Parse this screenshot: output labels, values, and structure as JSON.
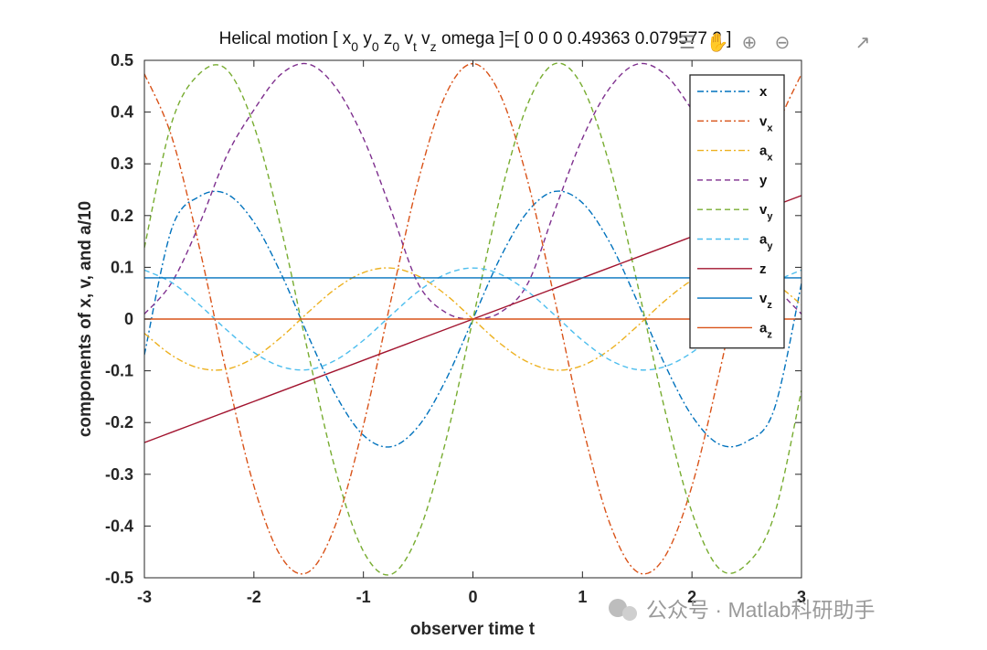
{
  "title": {
    "prefix": "Helical motion  [ x",
    "parts": [
      {
        "t": "0",
        "sub": true
      },
      {
        "t": " y",
        "sub": false
      },
      {
        "t": "0",
        "sub": true
      },
      {
        "t": " z",
        "sub": false
      },
      {
        "t": "0",
        "sub": true
      },
      {
        "t": " v",
        "sub": false
      },
      {
        "t": "t",
        "sub": true
      },
      {
        "t": " v",
        "sub": false
      },
      {
        "t": "z",
        "sub": true
      },
      {
        "t": " omega ]=[ 0 0 0 0.49363 0.079577 2 ]",
        "sub": false
      }
    ]
  },
  "toolbar": [
    {
      "name": "legend-toggle-icon",
      "glyph": "☰"
    },
    {
      "name": "pan-hand-icon",
      "glyph": "✋"
    },
    {
      "name": "zoom-in-icon",
      "glyph": "⊕"
    },
    {
      "name": "zoom-out-icon",
      "glyph": "⊖"
    },
    {
      "name": "restore-view-icon",
      "glyph": "↗"
    }
  ],
  "watermark": "公众号 · Matlab科研助手",
  "chart_data": {
    "type": "line",
    "xlabel": "observer time t",
    "ylabel": "components of  x,  v, and  a/10",
    "xlim": [
      -3,
      3
    ],
    "ylim": [
      -0.5,
      0.5
    ],
    "xticks": [
      "-3",
      "-2",
      "-1",
      "0",
      "1",
      "2",
      "3"
    ],
    "yticks": [
      "-0.5",
      "-0.4",
      "-0.3",
      "-0.2",
      "-0.1",
      "0",
      "0.1",
      "0.2",
      "0.3",
      "0.4",
      "0.5"
    ],
    "grid": false,
    "legend_position": "top-right",
    "x": [
      -3.0,
      -2.75,
      -2.5,
      -2.25,
      -2.0,
      -1.75,
      -1.5,
      -1.25,
      -1.0,
      -0.75,
      -0.5,
      -0.25,
      0.0,
      0.25,
      0.5,
      0.75,
      1.0,
      1.25,
      1.5,
      1.75,
      2.0,
      2.25,
      2.5,
      2.75,
      3.0
    ],
    "series": [
      {
        "name": "x",
        "label": "x",
        "sub": "",
        "color": "#0072BD",
        "dash": "7 3 2 3",
        "values": [
          -0.0691,
          0.1749,
          0.2367,
          0.242,
          0.1871,
          0.0869,
          -0.0346,
          -0.1478,
          -0.2245,
          -0.2468,
          -0.2077,
          -0.1187,
          0.0,
          0.1187,
          0.2077,
          0.2468,
          0.2245,
          0.1478,
          0.0346,
          -0.0869,
          -0.1871,
          -0.242,
          -0.2367,
          -0.1749,
          0.0691
        ]
      },
      {
        "name": "vx",
        "label": "v",
        "sub": "x",
        "color": "#D95319",
        "dash": "7 3 2 3",
        "values": [
          0.474,
          0.352,
          0.1401,
          -0.104,
          -0.3226,
          -0.4599,
          -0.4886,
          -0.3951,
          -0.2054,
          0.0349,
          0.2667,
          0.4332,
          0.4936,
          0.4332,
          0.2667,
          0.0349,
          -0.2054,
          -0.3951,
          -0.4886,
          -0.4599,
          -0.3226,
          -0.104,
          0.1401,
          0.352,
          0.474
        ]
      },
      {
        "name": "ax",
        "label": "a",
        "sub": "x",
        "color": "#EDB120",
        "dash": "7 3 2 3",
        "values": [
          -0.0276,
          -0.07,
          -0.0947,
          -0.0968,
          -0.0748,
          -0.0348,
          0.0139,
          0.0591,
          0.0898,
          0.0987,
          0.0831,
          0.0475,
          0.0,
          -0.0475,
          -0.0831,
          -0.0987,
          -0.0898,
          -0.0591,
          -0.0139,
          0.0348,
          0.0748,
          0.0968,
          0.0947,
          0.07,
          0.0276
        ]
      },
      {
        "name": "y",
        "label": "y",
        "sub": "",
        "color": "#7E2F8E",
        "dash": "6 4",
        "values": [
          0.0097,
          0.0706,
          0.1822,
          0.3149,
          0.4042,
          0.4736,
          0.4927,
          0.4468,
          0.3493,
          0.2117,
          0.0685,
          0.0129,
          0.0,
          0.0129,
          0.0685,
          0.2117,
          0.3493,
          0.4468,
          0.4927,
          0.4736,
          0.4042,
          0.3149,
          0.1822,
          0.0706,
          0.0097
        ]
      },
      {
        "name": "vy",
        "label": "v",
        "sub": "y",
        "color": "#77AC30",
        "dash": "6 4",
        "values": [
          0.1379,
          0.3799,
          0.4736,
          0.4825,
          0.3736,
          0.1734,
          -0.0697,
          -0.2956,
          -0.4489,
          -0.4936,
          -0.4154,
          -0.2373,
          0.0,
          0.2373,
          0.4154,
          0.4936,
          0.4489,
          0.2956,
          0.0697,
          -0.1734,
          -0.3736,
          -0.4825,
          -0.4736,
          -0.3799,
          -0.1379
        ]
      },
      {
        "name": "ay",
        "label": "a",
        "sub": "y",
        "color": "#4DBEEE",
        "dash": "6 4",
        "values": [
          0.0948,
          0.0704,
          0.028,
          -0.0208,
          -0.0645,
          -0.092,
          -0.0977,
          -0.079,
          -0.0411,
          0.007,
          0.0533,
          0.0866,
          0.0987,
          0.0866,
          0.0533,
          0.007,
          -0.0411,
          -0.079,
          -0.0977,
          -0.092,
          -0.0645,
          -0.0208,
          0.028,
          0.0704,
          0.0948
        ]
      },
      {
        "name": "z",
        "label": "z",
        "sub": "",
        "color": "#A2142F",
        "dash": "",
        "values": [
          -0.2387,
          -0.2188,
          -0.1989,
          -0.179,
          -0.1592,
          -0.1393,
          -0.1194,
          -0.0995,
          -0.0796,
          -0.0597,
          -0.0398,
          -0.0199,
          0.0,
          0.0199,
          0.0398,
          0.0597,
          0.0796,
          0.0995,
          0.1194,
          0.1393,
          0.1592,
          0.179,
          0.1989,
          0.2188,
          0.2387
        ]
      },
      {
        "name": "vz",
        "label": "v",
        "sub": "z",
        "color": "#0072BD",
        "dash": "",
        "values": [
          0.0796,
          0.0796,
          0.0796,
          0.0796,
          0.0796,
          0.0796,
          0.0796,
          0.0796,
          0.0796,
          0.0796,
          0.0796,
          0.0796,
          0.0796,
          0.0796,
          0.0796,
          0.0796,
          0.0796,
          0.0796,
          0.0796,
          0.0796,
          0.0796,
          0.0796,
          0.0796,
          0.0796,
          0.0796
        ]
      },
      {
        "name": "az",
        "label": "a",
        "sub": "z",
        "color": "#D95319",
        "dash": "",
        "values": [
          0.0,
          0.0,
          0.0,
          0.0,
          0.0,
          0.0,
          0.0,
          0.0,
          0.0,
          0.0,
          0.0,
          0.0,
          0.0,
          0.0,
          0.0,
          0.0,
          0.0,
          0.0,
          0.0,
          0.0,
          0.0,
          0.0,
          0.0,
          0.0,
          0.0
        ]
      }
    ]
  }
}
